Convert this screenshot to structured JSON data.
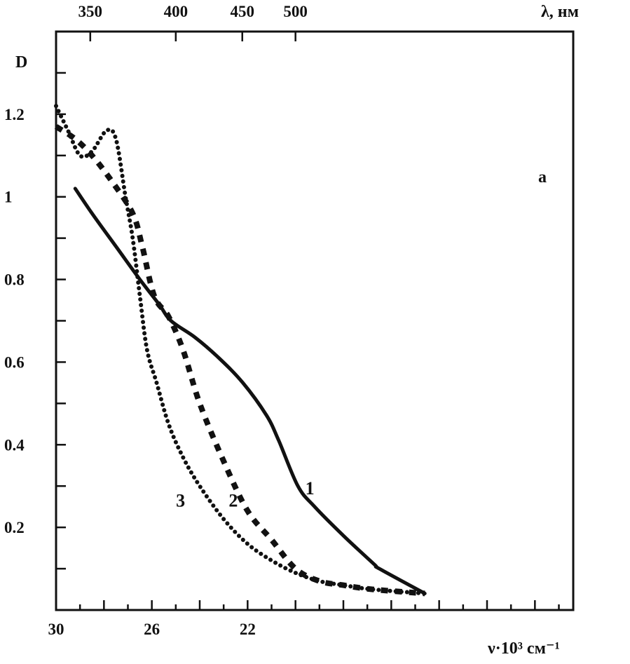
{
  "chart_data": {
    "type": "line",
    "panel_label": "а",
    "ylabel": "D",
    "xlabel_bottom": "ν·10³ см⁻¹",
    "xlabel_top": "λ, нм",
    "y_ticks": [
      "0.2",
      "0.4",
      "0.6",
      "0.8",
      "1",
      "1.2"
    ],
    "y_tick_values": [
      0.2,
      0.4,
      0.6,
      0.8,
      1.0,
      1.2
    ],
    "x_bottom_ticks": [
      "30",
      "26",
      "22"
    ],
    "x_bottom_tick_values": [
      30,
      26,
      22
    ],
    "x_top_ticks": [
      "350",
      "400",
      "450",
      "500"
    ],
    "x_top_tick_values": [
      350,
      400,
      450,
      500
    ],
    "xlim": [
      30,
      8.4
    ],
    "ylim": [
      0,
      1.4
    ],
    "series": [
      {
        "name": "1",
        "style": "solid",
        "x": [
          29.2,
          28.5,
          27.5,
          26.5,
          25.7,
          25.2,
          24.2,
          23.2,
          22.2,
          21.2,
          20.7,
          19.9,
          19.2,
          18.0,
          16.7,
          16.5,
          14.6
        ],
        "y": [
          1.02,
          0.96,
          0.88,
          0.8,
          0.74,
          0.7,
          0.66,
          0.61,
          0.55,
          0.47,
          0.41,
          0.3,
          0.25,
          0.18,
          0.11,
          0.1,
          0.04
        ]
      },
      {
        "name": "2",
        "style": "dashed",
        "x": [
          30.0,
          29.2,
          28.5,
          27.7,
          26.8,
          26.4,
          25.9,
          25.3,
          24.7,
          24.0,
          23.0,
          22.0,
          21.0,
          20.0,
          19.0,
          18.0,
          16.8,
          14.6
        ],
        "y": [
          1.17,
          1.14,
          1.1,
          1.04,
          0.96,
          0.88,
          0.76,
          0.71,
          0.63,
          0.5,
          0.36,
          0.24,
          0.17,
          0.1,
          0.07,
          0.06,
          0.05,
          0.04
        ]
      },
      {
        "name": "3",
        "style": "dotted",
        "x": [
          30.0,
          29.5,
          29.0,
          28.5,
          27.9,
          27.5,
          27.1,
          26.8,
          26.5,
          26.2,
          25.8,
          25.3,
          24.7,
          24.0,
          23.0,
          22.0,
          21.0,
          20.0,
          19.0,
          18.0,
          16.8,
          14.6
        ],
        "y": [
          1.22,
          1.16,
          1.1,
          1.11,
          1.16,
          1.14,
          1.0,
          0.9,
          0.76,
          0.63,
          0.55,
          0.45,
          0.37,
          0.3,
          0.22,
          0.16,
          0.12,
          0.09,
          0.07,
          0.06,
          0.05,
          0.04
        ]
      }
    ],
    "curve_labels": [
      {
        "text": "1",
        "x": 19.4,
        "y": 0.28
      },
      {
        "text": "2",
        "x": 22.6,
        "y": 0.25
      },
      {
        "text": "3",
        "x": 24.8,
        "y": 0.25
      }
    ]
  }
}
